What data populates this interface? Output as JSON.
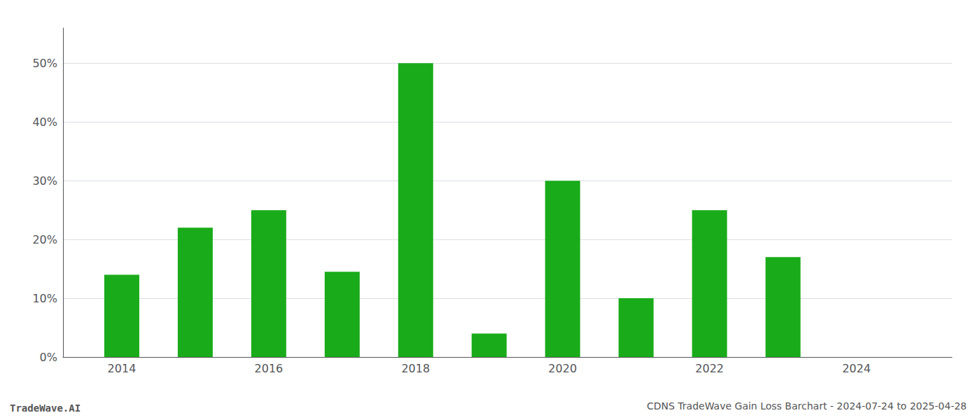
{
  "chart_data": {
    "type": "bar",
    "title": "CDNS TradeWave Gain Loss Barchart - 2024-07-24 to 2025-04-28",
    "annotations": [
      "TradeWave.AI"
    ],
    "x": [
      2014,
      2015,
      2016,
      2017,
      2018,
      2019,
      2020,
      2021,
      2022,
      2023,
      2024
    ],
    "values": [
      0.14,
      0.22,
      0.25,
      0.145,
      0.5,
      0.04,
      0.3,
      0.1,
      0.25,
      0.17,
      0.0
    ],
    "color": "#1aab1a",
    "xlim": [
      2013.2,
      2025.3
    ],
    "xticks": [
      2014,
      2016,
      2018,
      2020,
      2022,
      2024
    ],
    "ylim": [
      0,
      0.56
    ],
    "yticks": [
      {
        "value": 0.0,
        "label": "0%"
      },
      {
        "value": 0.1,
        "label": "10%"
      },
      {
        "value": 0.2,
        "label": "20%"
      },
      {
        "value": 0.3,
        "label": "30%"
      },
      {
        "value": 0.4,
        "label": "40%"
      },
      {
        "value": 0.5,
        "label": "50%"
      }
    ],
    "grid": true
  }
}
